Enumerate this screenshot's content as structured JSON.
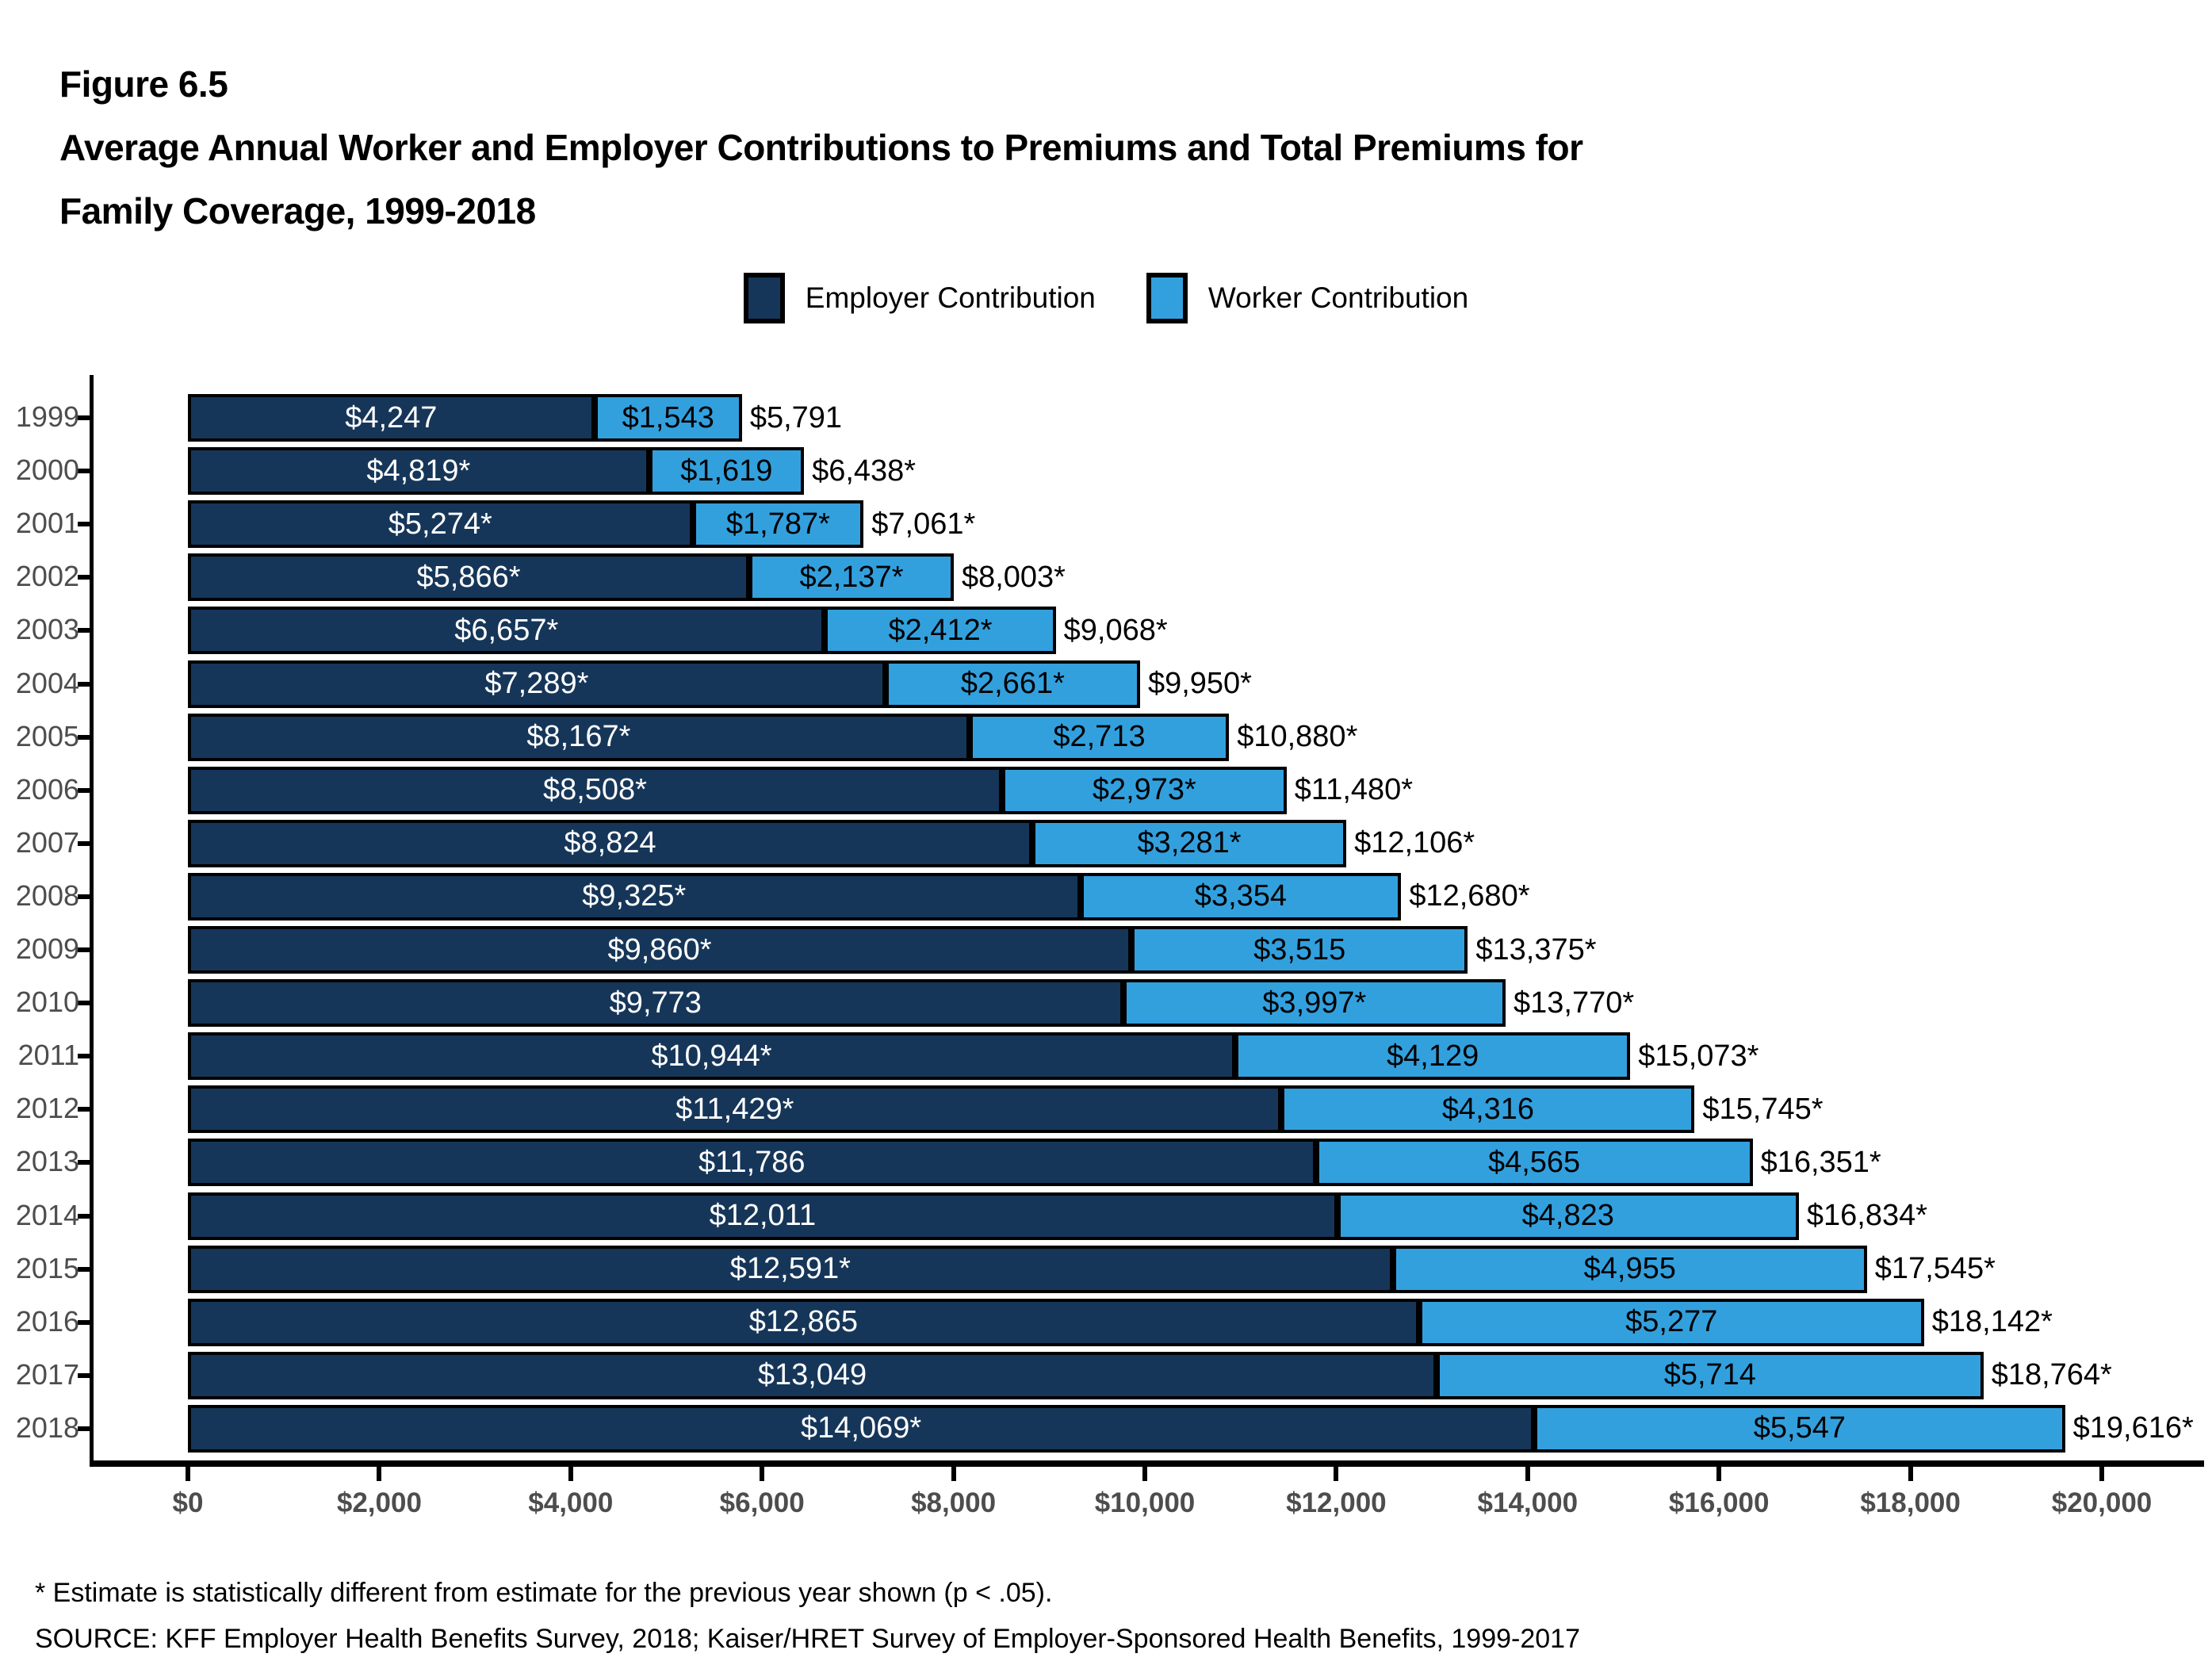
{
  "figure": {
    "number": "Figure 6.5",
    "title_line1": "Average Annual Worker and Employer Contributions to Premiums and Total Premiums for",
    "title_line2": "Family Coverage, 1999-2018"
  },
  "legend": {
    "items": [
      {
        "label": "Employer Contribution",
        "color": "#163659"
      },
      {
        "label": "Worker Contribution",
        "color": "#33a0de"
      }
    ]
  },
  "chart_data": {
    "type": "bar",
    "orientation": "horizontal-stacked",
    "title": "Average Annual Worker and Employer Contributions to Premiums and Total Premiums for Family Coverage, 1999-2018",
    "categories": [
      "1999",
      "2000",
      "2001",
      "2002",
      "2003",
      "2004",
      "2005",
      "2006",
      "2007",
      "2008",
      "2009",
      "2010",
      "2011",
      "2012",
      "2013",
      "2014",
      "2015",
      "2016",
      "2017",
      "2018"
    ],
    "series": [
      {
        "name": "Employer Contribution",
        "color": "#163659",
        "values": [
          4247,
          4819,
          5274,
          5866,
          6657,
          7289,
          8167,
          8508,
          8824,
          9325,
          9860,
          9773,
          10944,
          11429,
          11786,
          12011,
          12591,
          12865,
          13049,
          14069
        ],
        "labels": [
          "$4,247",
          "$4,819*",
          "$5,274*",
          "$5,866*",
          "$6,657*",
          "$7,289*",
          "$8,167*",
          "$8,508*",
          "$8,824",
          "$9,325*",
          "$9,860*",
          "$9,773",
          "$10,944*",
          "$11,429*",
          "$11,786",
          "$12,011",
          "$12,591*",
          "$12,865",
          "$13,049",
          "$14,069*"
        ]
      },
      {
        "name": "Worker Contribution",
        "color": "#33a0de",
        "values": [
          1543,
          1619,
          1787,
          2137,
          2412,
          2661,
          2713,
          2973,
          3281,
          3354,
          3515,
          3997,
          4129,
          4316,
          4565,
          4823,
          4955,
          5277,
          5714,
          5547
        ],
        "labels": [
          "$1,543",
          "$1,619",
          "$1,787*",
          "$2,137*",
          "$2,412*",
          "$2,661*",
          "$2,713",
          "$2,973*",
          "$3,281*",
          "$3,354",
          "$3,515",
          "$3,997*",
          "$4,129",
          "$4,316",
          "$4,565",
          "$4,823",
          "$4,955",
          "$5,277",
          "$5,714",
          "$5,547"
        ]
      }
    ],
    "totals": {
      "values": [
        5791,
        6438,
        7061,
        8003,
        9068,
        9950,
        10880,
        11480,
        12106,
        12680,
        13375,
        13770,
        15073,
        15745,
        16351,
        16834,
        17545,
        18142,
        18764,
        19616
      ],
      "labels": [
        "$5,791",
        "$6,438*",
        "$7,061*",
        "$8,003*",
        "$9,068*",
        "$9,950*",
        "$10,880*",
        "$11,480*",
        "$12,106*",
        "$12,680*",
        "$13,375*",
        "$13,770*",
        "$15,073*",
        "$15,745*",
        "$16,351*",
        "$16,834*",
        "$17,545*",
        "$18,142*",
        "$18,764*",
        "$19,616*"
      ]
    },
    "x_axis": {
      "min": 0,
      "max": 20000,
      "tick_step": 2000,
      "tick_labels": [
        "$0",
        "$2,000",
        "$4,000",
        "$6,000",
        "$8,000",
        "$10,000",
        "$12,000",
        "$14,000",
        "$16,000",
        "$18,000",
        "$20,000"
      ]
    },
    "legend_position": "top-center",
    "grid": false
  },
  "footnote": "* Estimate is statistically different from estimate for the previous year shown (p < .05).",
  "source": "SOURCE: KFF Employer Health Benefits Survey, 2018; Kaiser/HRET Survey of Employer-Sponsored Health Benefits, 1999-2017"
}
